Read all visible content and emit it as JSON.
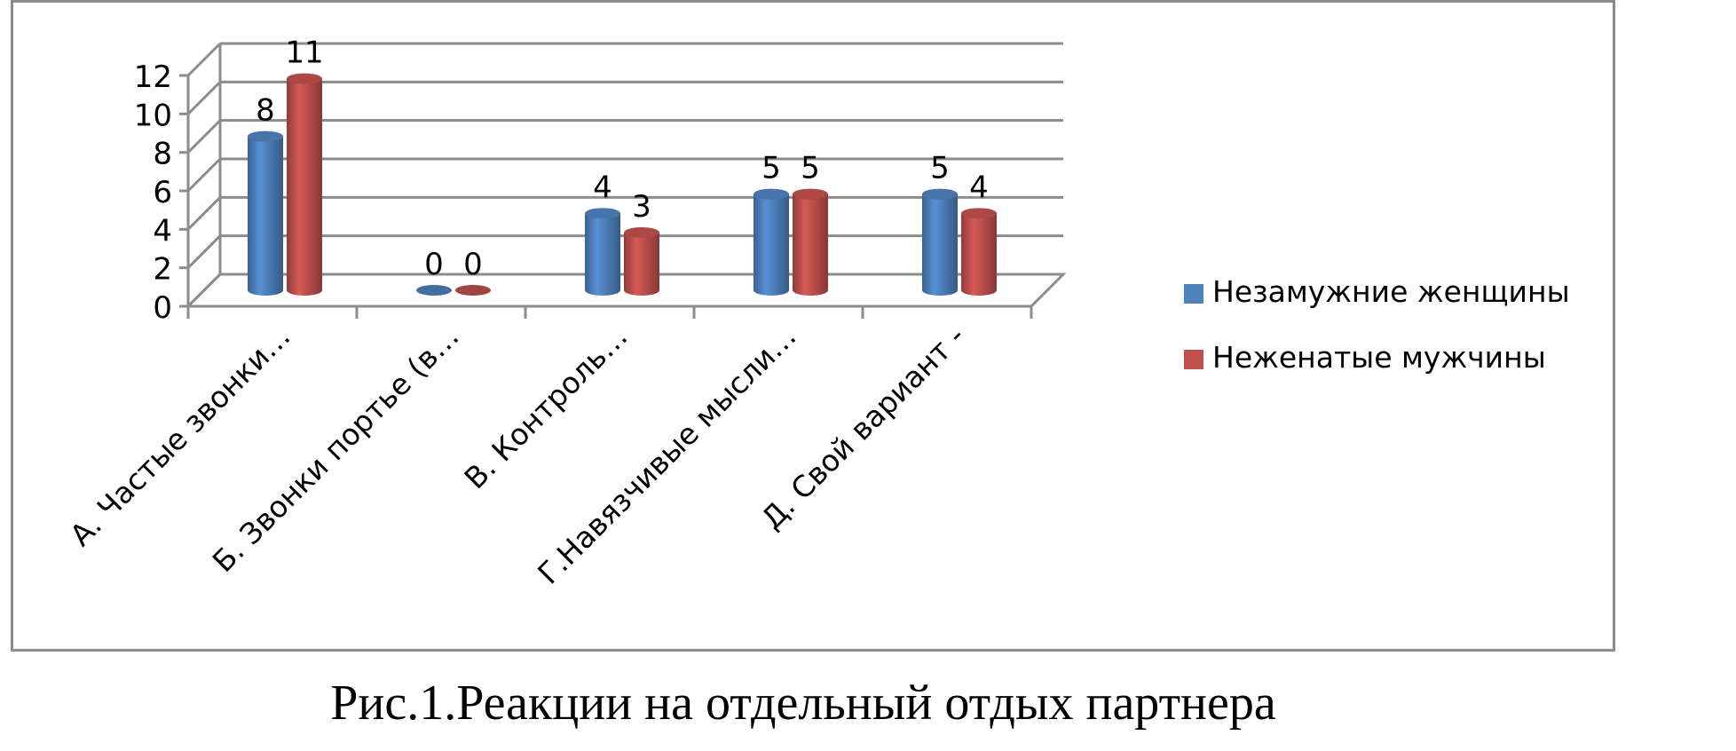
{
  "caption": "Рис.1.Реакции на отдельный отдых партнера",
  "chart_data": {
    "type": "bar",
    "style": "3d-cylinder",
    "categories": [
      "А. Частые звонки…",
      "Б. Звонки портье (в…",
      "В. Контроль…",
      "Г.Навязчивые мысли…",
      "Д. Свой вариант -"
    ],
    "series": [
      {
        "name": "Незамужние женщины",
        "values": [
          8,
          0,
          4,
          5,
          5
        ],
        "color": "#4f81bd"
      },
      {
        "name": "Неженатые мужчины",
        "values": [
          11,
          0,
          3,
          5,
          4
        ],
        "color": "#c0504d"
      }
    ],
    "y_ticks": [
      "0",
      "2",
      "4",
      "6",
      "8",
      "10",
      "12"
    ],
    "ylim": [
      0,
      12
    ],
    "grid": true,
    "data_labels": true,
    "legend_position": "right"
  }
}
